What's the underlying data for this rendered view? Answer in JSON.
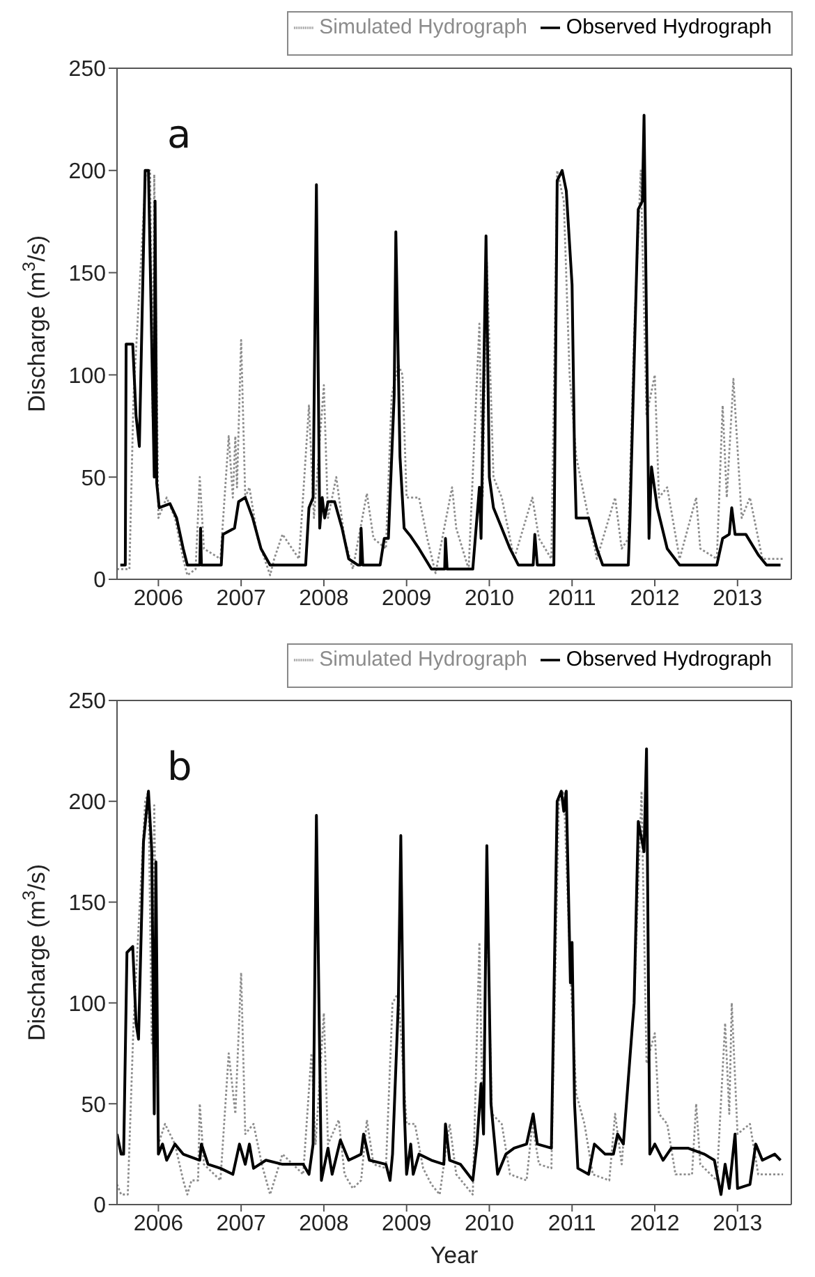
{
  "chart_data": [
    {
      "type": "line",
      "annotations": [
        "a"
      ],
      "ylabel": "Discharge (m$^{3}$/s)",
      "xlim": [
        2005.5,
        2013.65
      ],
      "xticks": [
        2006,
        2007,
        2008,
        2009,
        2010,
        2011,
        2012,
        2013
      ],
      "ylim": [
        0,
        250
      ],
      "yticks": [
        0,
        50,
        100,
        150,
        200,
        250
      ],
      "legend": "top",
      "marker": "none",
      "series": [
        {
          "name": "Simulated Hydrograph",
          "color": "#8c8c8c",
          "line_style": "dotted",
          "x": [
            2005.5,
            2005.65,
            2005.7,
            2005.85,
            2005.9,
            2005.93,
            2005.95,
            2006.0,
            2006.1,
            2006.2,
            2006.3,
            2006.35,
            2006.45,
            2006.5,
            2006.55,
            2006.75,
            2006.85,
            2006.9,
            2006.93,
            2006.95,
            2007.0,
            2007.05,
            2007.1,
            2007.2,
            2007.35,
            2007.4,
            2007.5,
            2007.7,
            2007.82,
            2007.88,
            2008.0,
            2008.05,
            2008.15,
            2008.25,
            2008.35,
            2008.52,
            2008.6,
            2008.75,
            2008.82,
            2008.9,
            2008.95,
            2009.0,
            2009.15,
            2009.25,
            2009.35,
            2009.55,
            2009.6,
            2009.75,
            2009.88,
            2009.92,
            2009.97,
            2010.05,
            2010.15,
            2010.3,
            2010.52,
            2010.6,
            2010.75,
            2010.82,
            2010.9,
            2010.97,
            2011.05,
            2011.15,
            2011.3,
            2011.52,
            2011.6,
            2011.68,
            2011.75,
            2011.83,
            2011.9,
            2012.0,
            2012.05,
            2012.15,
            2012.3,
            2012.5,
            2012.55,
            2012.75,
            2012.82,
            2012.87,
            2012.95,
            2013.05,
            2013.15,
            2013.3,
            2013.55
          ],
          "values": [
            5,
            5,
            90,
            200,
            200,
            80,
            198,
            30,
            40,
            30,
            10,
            2,
            5,
            50,
            15,
            10,
            70,
            40,
            70,
            45,
            117,
            40,
            45,
            20,
            2,
            10,
            22,
            10,
            85,
            30,
            95,
            30,
            50,
            20,
            5,
            42,
            20,
            15,
            90,
            105,
            100,
            40,
            40,
            20,
            3,
            45,
            25,
            5,
            125,
            40,
            155,
            50,
            40,
            10,
            40,
            20,
            10,
            200,
            185,
            100,
            60,
            40,
            10,
            40,
            15,
            20,
            120,
            200,
            80,
            100,
            40,
            45,
            10,
            40,
            15,
            10,
            85,
            40,
            98,
            30,
            40,
            10,
            10
          ]
        },
        {
          "name": "Observed Hydrograph",
          "color": "#000000",
          "line_style": "solid",
          "x": [
            2005.54,
            2005.6,
            2005.61,
            2005.69,
            2005.73,
            2005.77,
            2005.84,
            2005.88,
            2005.95,
            2005.96,
            2005.98,
            2006.01,
            2006.14,
            2006.22,
            2006.3,
            2006.35,
            2006.5,
            2006.51,
            2006.52,
            2006.76,
            2006.78,
            2006.92,
            2006.97,
            2007.05,
            2007.14,
            2007.24,
            2007.35,
            2007.78,
            2007.82,
            2007.87,
            2007.91,
            2007.95,
            2007.98,
            2008.01,
            2008.05,
            2008.13,
            2008.22,
            2008.3,
            2008.41,
            2008.44,
            2008.45,
            2008.47,
            2008.68,
            2008.73,
            2008.78,
            2008.85,
            2008.87,
            2008.92,
            2008.97,
            2009.05,
            2009.15,
            2009.3,
            2009.46,
            2009.47,
            2009.49,
            2009.8,
            2009.85,
            2009.88,
            2009.9,
            2009.96,
            2010.0,
            2010.05,
            2010.15,
            2010.25,
            2010.35,
            2010.53,
            2010.55,
            2010.58,
            2010.78,
            2010.82,
            2010.88,
            2010.93,
            2011.0,
            2011.03,
            2011.05,
            2011.2,
            2011.3,
            2011.37,
            2011.68,
            2011.7,
            2011.8,
            2011.85,
            2011.87,
            2011.93,
            2011.96,
            2012.03,
            2012.15,
            2012.3,
            2012.75,
            2012.82,
            2012.9,
            2012.93,
            2012.97,
            2013.1,
            2013.25,
            2013.35,
            2013.52
          ],
          "values": [
            7,
            7,
            115,
            115,
            80,
            65,
            200,
            200,
            50,
            185,
            47,
            35,
            37,
            30,
            15,
            7,
            7,
            25,
            7,
            7,
            22,
            25,
            38,
            40,
            30,
            15,
            7,
            7,
            35,
            40,
            193,
            25,
            40,
            30,
            38,
            38,
            25,
            10,
            7,
            7,
            25,
            7,
            7,
            20,
            20,
            90,
            170,
            60,
            25,
            21,
            15,
            5,
            5,
            20,
            5,
            5,
            30,
            45,
            20,
            168,
            50,
            35,
            25,
            15,
            7,
            7,
            22,
            7,
            7,
            195,
            200,
            190,
            144,
            60,
            30,
            30,
            15,
            7,
            7,
            30,
            181,
            185,
            227,
            20,
            55,
            35,
            15,
            7,
            7,
            20,
            22,
            35,
            22,
            22,
            12,
            7,
            7
          ]
        }
      ]
    },
    {
      "type": "line",
      "annotations": [
        "b"
      ],
      "xlabel": "Year",
      "ylabel": "Discharge (m$^{3}$/s)",
      "xlim": [
        2005.5,
        2013.65
      ],
      "xticks": [
        2006,
        2007,
        2008,
        2009,
        2010,
        2011,
        2012,
        2013
      ],
      "ylim": [
        0,
        250
      ],
      "yticks": [
        0,
        50,
        100,
        150,
        200,
        250
      ],
      "legend": "top",
      "marker": "none",
      "series": [
        {
          "name": "Simulated Hydrograph",
          "color": "#8c8c8c",
          "line_style": "dotted",
          "x": [
            2005.5,
            2005.55,
            2005.63,
            2005.7,
            2005.84,
            2005.88,
            2005.92,
            2005.95,
            2006.0,
            2006.08,
            2006.2,
            2006.3,
            2006.35,
            2006.4,
            2006.48,
            2006.5,
            2006.55,
            2006.75,
            2006.85,
            2006.93,
            2007.0,
            2007.05,
            2007.15,
            2007.25,
            2007.35,
            2007.5,
            2007.75,
            2007.85,
            2007.9,
            2008.0,
            2008.05,
            2008.18,
            2008.25,
            2008.35,
            2008.45,
            2008.52,
            2008.6,
            2008.75,
            2008.83,
            2008.9,
            2009.0,
            2009.1,
            2009.2,
            2009.3,
            2009.4,
            2009.52,
            2009.6,
            2009.8,
            2009.88,
            2009.92,
            2009.97,
            2010.03,
            2010.15,
            2010.25,
            2010.45,
            2010.52,
            2010.6,
            2010.75,
            2010.84,
            2010.9,
            2010.98,
            2011.05,
            2011.15,
            2011.25,
            2011.45,
            2011.52,
            2011.6,
            2011.75,
            2011.84,
            2011.9,
            2012.0,
            2012.05,
            2012.15,
            2012.25,
            2012.45,
            2012.5,
            2012.55,
            2012.75,
            2012.85,
            2012.9,
            2012.93,
            2013.0,
            2013.15,
            2013.25,
            2013.55
          ],
          "values": [
            10,
            5,
            5,
            90,
            200,
            205,
            80,
            198,
            30,
            40,
            30,
            12,
            5,
            12,
            12,
            50,
            20,
            12,
            75,
            45,
            115,
            35,
            40,
            20,
            5,
            25,
            15,
            75,
            30,
            95,
            30,
            42,
            15,
            8,
            12,
            42,
            20,
            18,
            100,
            105,
            40,
            40,
            18,
            10,
            5,
            40,
            15,
            5,
            130,
            40,
            155,
            45,
            40,
            15,
            12,
            40,
            20,
            18,
            200,
            205,
            115,
            55,
            40,
            15,
            12,
            45,
            20,
            100,
            205,
            70,
            85,
            45,
            40,
            15,
            15,
            50,
            20,
            12,
            90,
            45,
            100,
            35,
            40,
            15,
            15
          ]
        },
        {
          "name": "Observed Hydrograph",
          "color": "#000000",
          "line_style": "solid",
          "x": [
            2005.5,
            2005.55,
            2005.58,
            2005.62,
            2005.69,
            2005.73,
            2005.76,
            2005.82,
            2005.88,
            2005.9,
            2005.92,
            2005.95,
            2005.97,
            2006.0,
            2006.05,
            2006.1,
            2006.2,
            2006.3,
            2006.5,
            2006.52,
            2006.6,
            2006.75,
            2006.9,
            2006.98,
            2007.05,
            2007.1,
            2007.15,
            2007.3,
            2007.5,
            2007.75,
            2007.82,
            2007.87,
            2007.91,
            2007.97,
            2008.05,
            2008.1,
            2008.2,
            2008.3,
            2008.45,
            2008.48,
            2008.55,
            2008.75,
            2008.8,
            2008.83,
            2008.9,
            2008.93,
            2008.97,
            2009.0,
            2009.05,
            2009.08,
            2009.15,
            2009.3,
            2009.45,
            2009.47,
            2009.52,
            2009.65,
            2009.8,
            2009.85,
            2009.9,
            2009.93,
            2009.97,
            2010.02,
            2010.1,
            2010.2,
            2010.3,
            2010.45,
            2010.53,
            2010.58,
            2010.75,
            2010.82,
            2010.87,
            2010.9,
            2010.93,
            2010.98,
            2011.0,
            2011.03,
            2011.07,
            2011.2,
            2011.27,
            2011.4,
            2011.5,
            2011.55,
            2011.62,
            2011.75,
            2011.8,
            2011.87,
            2011.9,
            2011.94,
            2012.0,
            2012.1,
            2012.2,
            2012.4,
            2012.6,
            2012.72,
            2012.8,
            2012.85,
            2012.9,
            2012.97,
            2013.0,
            2013.15,
            2013.22,
            2013.3,
            2013.45,
            2013.52
          ],
          "values": [
            35,
            25,
            25,
            125,
            128,
            90,
            82,
            180,
            205,
            190,
            175,
            45,
            170,
            25,
            30,
            22,
            30,
            25,
            22,
            30,
            20,
            18,
            15,
            30,
            20,
            30,
            18,
            22,
            20,
            20,
            15,
            30,
            193,
            12,
            28,
            15,
            32,
            22,
            25,
            35,
            22,
            20,
            12,
            25,
            100,
            183,
            50,
            15,
            30,
            15,
            25,
            22,
            20,
            40,
            22,
            20,
            12,
            30,
            60,
            35,
            178,
            50,
            15,
            25,
            28,
            30,
            45,
            30,
            28,
            200,
            205,
            195,
            205,
            110,
            130,
            50,
            18,
            15,
            30,
            25,
            25,
            35,
            30,
            100,
            190,
            175,
            226,
            25,
            30,
            22,
            28,
            28,
            25,
            22,
            5,
            20,
            8,
            35,
            8,
            10,
            30,
            22,
            25,
            22
          ]
        }
      ]
    }
  ]
}
